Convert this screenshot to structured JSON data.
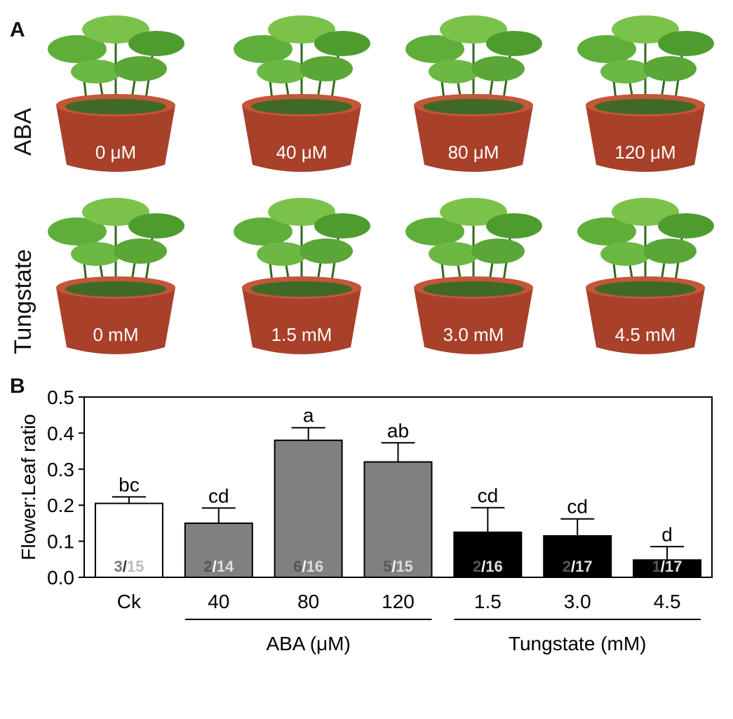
{
  "panels": {
    "a": "A",
    "b": "B"
  },
  "rows": [
    {
      "label": "ABA",
      "photos": [
        "0 μM",
        "40 μM",
        "80 μM",
        "120 μM"
      ]
    },
    {
      "label": "Tungstate",
      "photos": [
        "0 mM",
        "1.5 mM",
        "3.0 mM",
        "4.5 mM"
      ]
    }
  ],
  "chart_data": {
    "type": "bar",
    "ylabel": "Flower:Leaf ratio",
    "ylim": [
      0,
      0.5
    ],
    "yticks": [
      "0.0",
      "0.1",
      "0.2",
      "0.3",
      "0.4",
      "0.5"
    ],
    "categories": [
      "Ck",
      "40",
      "80",
      "120",
      "1.5",
      "3.0",
      "4.5"
    ],
    "values": [
      0.205,
      0.15,
      0.38,
      0.32,
      0.125,
      0.115,
      0.048
    ],
    "errors": [
      0.018,
      0.042,
      0.035,
      0.053,
      0.068,
      0.047,
      0.037
    ],
    "significance": [
      "bc",
      "cd",
      "a",
      "ab",
      "cd",
      "cd",
      "d"
    ],
    "counts": [
      {
        "flowers": "3",
        "leaves": "15"
      },
      {
        "flowers": "2",
        "leaves": "14"
      },
      {
        "flowers": "6",
        "leaves": "16"
      },
      {
        "flowers": "5",
        "leaves": "15"
      },
      {
        "flowers": "2",
        "leaves": "16"
      },
      {
        "flowers": "2",
        "leaves": "17"
      },
      {
        "flowers": "1",
        "leaves": "17"
      }
    ],
    "bar_colors": [
      "#ffffff",
      "#808080",
      "#808080",
      "#808080",
      "#000000",
      "#000000",
      "#000000"
    ],
    "groups": [
      {
        "label": "ABA (μM)"
      },
      {
        "label": "Tungstate (mM)"
      }
    ]
  }
}
